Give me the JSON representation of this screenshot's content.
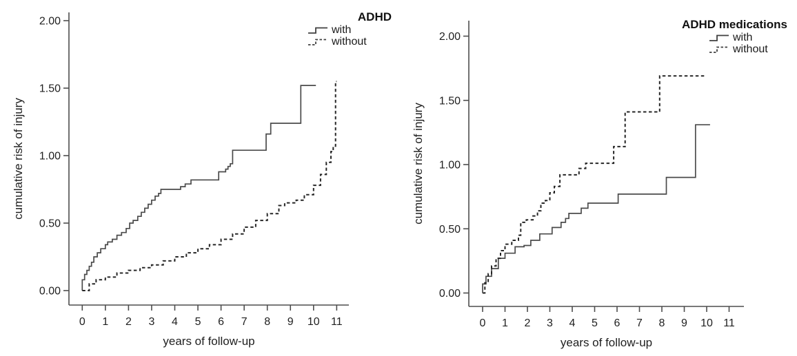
{
  "figure": {
    "background": "#ffffff",
    "axis_color": "#4d4d4d",
    "text_color": "#1f1f1f"
  },
  "chart_data": [
    {
      "type": "line",
      "style": "step-after",
      "title": "ADHD",
      "xlabel": "years of follow-up",
      "ylabel": "cumulative risk of injury",
      "xlim": [
        0,
        11
      ],
      "ylim": [
        0,
        2
      ],
      "grid": false,
      "legend_position": "top-right",
      "xticks": [
        0,
        1,
        2,
        3,
        4,
        5,
        6,
        7,
        8,
        9,
        10,
        11
      ],
      "ytick_values": [
        0,
        0.5,
        1.0,
        1.5,
        2.0
      ],
      "ytick_labels": [
        "0.00",
        "0.50",
        "1.00",
        "1.50",
        "2.00"
      ],
      "series": [
        {
          "name": "with",
          "dash": "solid",
          "color": "#4a4a4a",
          "points": [
            [
              0,
              0
            ],
            [
              0,
              0.08
            ],
            [
              0.1,
              0.12
            ],
            [
              0.2,
              0.15
            ],
            [
              0.3,
              0.18
            ],
            [
              0.4,
              0.21
            ],
            [
              0.5,
              0.25
            ],
            [
              0.65,
              0.28
            ],
            [
              0.8,
              0.31
            ],
            [
              1.0,
              0.34
            ],
            [
              1.1,
              0.36
            ],
            [
              1.3,
              0.38
            ],
            [
              1.5,
              0.41
            ],
            [
              1.7,
              0.43
            ],
            [
              1.9,
              0.46
            ],
            [
              2.05,
              0.5
            ],
            [
              2.2,
              0.52
            ],
            [
              2.4,
              0.55
            ],
            [
              2.55,
              0.58
            ],
            [
              2.7,
              0.61
            ],
            [
              2.85,
              0.64
            ],
            [
              3.0,
              0.67
            ],
            [
              3.15,
              0.7
            ],
            [
              3.3,
              0.72
            ],
            [
              3.4,
              0.75
            ],
            [
              4.2,
              0.75
            ],
            [
              4.25,
              0.77
            ],
            [
              4.45,
              0.79
            ],
            [
              4.7,
              0.82
            ],
            [
              5.85,
              0.82
            ],
            [
              5.9,
              0.88
            ],
            [
              6.15,
              0.88
            ],
            [
              6.2,
              0.9
            ],
            [
              6.3,
              0.92
            ],
            [
              6.4,
              0.94
            ],
            [
              6.5,
              1.04
            ],
            [
              7.9,
              1.04
            ],
            [
              7.95,
              1.16
            ],
            [
              8.1,
              1.16
            ],
            [
              8.15,
              1.24
            ],
            [
              9.4,
              1.24
            ],
            [
              9.45,
              1.52
            ],
            [
              10.1,
              1.52
            ]
          ]
        },
        {
          "name": "without",
          "dash": "dashed",
          "color": "#262626",
          "points": [
            [
              0,
              0
            ],
            [
              0.3,
              0.05
            ],
            [
              0.6,
              0.08
            ],
            [
              1.0,
              0.1
            ],
            [
              1.5,
              0.13
            ],
            [
              2.0,
              0.15
            ],
            [
              2.5,
              0.17
            ],
            [
              3.0,
              0.19
            ],
            [
              3.5,
              0.22
            ],
            [
              4.0,
              0.25
            ],
            [
              4.5,
              0.28
            ],
            [
              5.0,
              0.31
            ],
            [
              5.5,
              0.34
            ],
            [
              6.0,
              0.38
            ],
            [
              6.5,
              0.42
            ],
            [
              7.0,
              0.47
            ],
            [
              7.5,
              0.52
            ],
            [
              8.0,
              0.57
            ],
            [
              8.5,
              0.63
            ],
            [
              8.75,
              0.65
            ],
            [
              9.25,
              0.67
            ],
            [
              9.6,
              0.71
            ],
            [
              10.0,
              0.78
            ],
            [
              10.3,
              0.86
            ],
            [
              10.55,
              0.95
            ],
            [
              10.75,
              1.03
            ],
            [
              10.85,
              1.07
            ],
            [
              10.95,
              1.55
            ],
            [
              11.0,
              1.55
            ]
          ]
        }
      ]
    },
    {
      "type": "line",
      "style": "step-after",
      "title": "ADHD medications",
      "xlabel": "years of follow-up",
      "ylabel": "cumulative risk of injury",
      "xlim": [
        0,
        11
      ],
      "ylim": [
        0,
        2
      ],
      "grid": false,
      "legend_position": "top-right",
      "xticks": [
        0,
        1,
        2,
        3,
        4,
        5,
        6,
        7,
        8,
        9,
        10,
        11
      ],
      "ytick_values": [
        0,
        0.5,
        1.0,
        1.5,
        2.0
      ],
      "ytick_labels": [
        "0.00",
        "0.50",
        "1.00",
        "1.50",
        "2.00"
      ],
      "series": [
        {
          "name": "with",
          "dash": "solid",
          "color": "#4a4a4a",
          "points": [
            [
              0,
              0
            ],
            [
              0,
              0.07
            ],
            [
              0.15,
              0.13
            ],
            [
              0.4,
              0.19
            ],
            [
              0.7,
              0.27
            ],
            [
              1.0,
              0.31
            ],
            [
              1.45,
              0.36
            ],
            [
              1.85,
              0.37
            ],
            [
              2.15,
              0.41
            ],
            [
              2.55,
              0.46
            ],
            [
              3.1,
              0.51
            ],
            [
              3.5,
              0.55
            ],
            [
              3.7,
              0.58
            ],
            [
              3.85,
              0.62
            ],
            [
              4.35,
              0.62
            ],
            [
              4.4,
              0.66
            ],
            [
              4.65,
              0.66
            ],
            [
              4.7,
              0.7
            ],
            [
              6.0,
              0.7
            ],
            [
              6.05,
              0.77
            ],
            [
              8.15,
              0.77
            ],
            [
              8.2,
              0.9
            ],
            [
              9.45,
              0.9
            ],
            [
              9.5,
              1.31
            ],
            [
              10.15,
              1.31
            ]
          ]
        },
        {
          "name": "without",
          "dash": "dashed",
          "color": "#262626",
          "points": [
            [
              0,
              0
            ],
            [
              0.1,
              0.08
            ],
            [
              0.25,
              0.15
            ],
            [
              0.4,
              0.21
            ],
            [
              0.6,
              0.27
            ],
            [
              0.8,
              0.33
            ],
            [
              1.0,
              0.38
            ],
            [
              1.3,
              0.41
            ],
            [
              1.6,
              0.45
            ],
            [
              1.7,
              0.55
            ],
            [
              1.95,
              0.57
            ],
            [
              2.25,
              0.6
            ],
            [
              2.45,
              0.64
            ],
            [
              2.6,
              0.7
            ],
            [
              2.8,
              0.72
            ],
            [
              3.0,
              0.78
            ],
            [
              3.2,
              0.83
            ],
            [
              3.45,
              0.92
            ],
            [
              4.2,
              0.92
            ],
            [
              4.3,
              0.97
            ],
            [
              4.55,
              0.97
            ],
            [
              4.6,
              1.01
            ],
            [
              5.75,
              1.01
            ],
            [
              5.85,
              1.14
            ],
            [
              6.3,
              1.14
            ],
            [
              6.36,
              1.41
            ],
            [
              7.8,
              1.41
            ],
            [
              7.9,
              1.69
            ],
            [
              9.9,
              1.69
            ]
          ]
        }
      ]
    }
  ]
}
